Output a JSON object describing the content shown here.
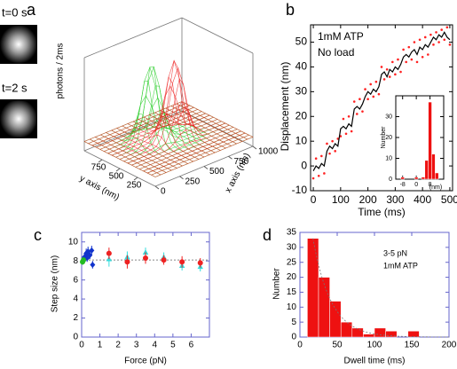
{
  "chart_data": [
    {
      "type": "surface",
      "label": "a",
      "image_labels": [
        "t=0 s",
        "t=2 s"
      ],
      "zlabel": "photons / 2ms",
      "xlabel": "x axis (nm)",
      "ylabel": "y axis (nm)",
      "xlim": [
        0,
        1000
      ],
      "ylim": [
        0,
        1000
      ],
      "xticks": [
        0,
        250,
        500,
        750,
        1000
      ],
      "yticks": [
        250,
        500,
        750
      ],
      "series": [
        {
          "color": "#22cc22"
        },
        {
          "color": "#ee2222"
        }
      ]
    },
    {
      "type": "line",
      "label": "b",
      "xlabel": "Time (ms)",
      "ylabel": "Displacement (nm)",
      "annotations": [
        "1mM ATP",
        "No load"
      ],
      "xlim": [
        -10,
        510
      ],
      "ylim": [
        -10,
        57
      ],
      "xticks": [
        0,
        100,
        200,
        300,
        400,
        500
      ],
      "yticks": [
        -10,
        0,
        10,
        20,
        30,
        40,
        50
      ],
      "x": [
        0,
        10,
        20,
        30,
        40,
        50,
        60,
        70,
        80,
        90,
        100,
        110,
        120,
        130,
        140,
        150,
        160,
        170,
        180,
        190,
        200,
        210,
        220,
        230,
        240,
        250,
        260,
        270,
        280,
        290,
        300,
        310,
        320,
        330,
        340,
        350,
        360,
        370,
        380,
        390,
        400,
        410,
        420,
        430,
        440,
        450,
        460,
        470,
        480,
        490,
        500
      ],
      "series": [
        {
          "color": "#ff2222",
          "style": "dots",
          "values": [
            -5,
            3,
            -4,
            4,
            -3,
            9,
            5,
            10,
            6,
            11,
            12,
            19,
            13,
            20,
            14,
            26,
            21,
            27,
            22,
            31,
            27,
            33,
            28,
            34,
            29,
            40,
            35,
            39,
            36,
            42,
            37,
            43,
            38,
            47,
            42,
            48,
            43,
            50,
            42,
            51,
            44,
            52,
            45,
            53,
            49,
            54,
            50,
            55,
            51,
            56,
            49
          ]
        },
        {
          "color": "#000000",
          "style": "line",
          "values": [
            -2,
            0,
            -1,
            1,
            0,
            6,
            8,
            7,
            9,
            8,
            15,
            16,
            15,
            17,
            16,
            23,
            24,
            23,
            25,
            28,
            30,
            29,
            31,
            30,
            32,
            37,
            38,
            36,
            39,
            38,
            40,
            39,
            41,
            44,
            45,
            44,
            46,
            47,
            45,
            48,
            47,
            49,
            48,
            50,
            52,
            51,
            53,
            52,
            54,
            52,
            51
          ]
        }
      ]
    },
    {
      "type": "histogram",
      "inset": true,
      "ylabel": "Number",
      "xunit": "(nm)",
      "color": "#ee1111",
      "bins": [
        -9,
        -7,
        -5,
        -3,
        -1,
        1,
        3,
        5,
        7,
        9,
        11,
        13
      ],
      "values": [
        1,
        0,
        0,
        0,
        1,
        0,
        1,
        9,
        37,
        12,
        3
      ],
      "xlim": [
        -12,
        16
      ],
      "ylim": [
        0,
        40
      ],
      "xticks": [
        -8,
        0,
        8
      ],
      "yticks": [
        0,
        10,
        20,
        30
      ]
    },
    {
      "type": "scatter",
      "label": "c",
      "xlabel": "Force (pN)",
      "ylabel": "Step size (nm)",
      "hline": 8.1,
      "xlim": [
        0,
        7
      ],
      "ylim": [
        0,
        11
      ],
      "xticks": [
        0,
        1,
        2,
        3,
        4,
        5,
        6
      ],
      "yticks": [
        0,
        2,
        4,
        6,
        8,
        10
      ],
      "series": [
        {
          "color": "#1133cc",
          "marker": "diamond",
          "x": [
            0.15,
            0.25,
            0.35,
            0.45,
            0.55,
            0.6,
            0.3
          ],
          "values": [
            8.4,
            8.8,
            9.0,
            8.6,
            9.1,
            7.6,
            8.3
          ],
          "errors": [
            0.4,
            0.5,
            0.5,
            0.4,
            0.5,
            0.4,
            0.4
          ]
        },
        {
          "color": "#22bb22",
          "marker": "circle",
          "x": [
            0.05,
            0.1
          ],
          "values": [
            7.9,
            8.1
          ],
          "errors": [
            0.3,
            0.3
          ]
        },
        {
          "color": "#33dddd",
          "marker": "triangle",
          "x": [
            1.5,
            2.5,
            3.5,
            4.5,
            5.5,
            6.5
          ],
          "values": [
            8.2,
            8.4,
            8.9,
            8.4,
            7.5,
            7.4
          ],
          "errors": [
            0.8,
            0.6,
            0.5,
            0.5,
            0.5,
            0.5
          ]
        },
        {
          "color": "#ee2222",
          "marker": "circle",
          "x": [
            1.5,
            2.5,
            3.5,
            4.5,
            5.5,
            6.5
          ],
          "values": [
            8.8,
            7.9,
            8.3,
            8.1,
            7.9,
            7.8
          ],
          "errors": [
            0.6,
            0.7,
            0.6,
            0.5,
            0.6,
            0.5
          ]
        }
      ]
    },
    {
      "type": "histogram",
      "label": "d",
      "xlabel": "Dwell time (ms)",
      "ylabel": "Number",
      "annotations": [
        "3-5 pN",
        "1mM ATP"
      ],
      "color": "#ee1111",
      "bins": [
        10,
        25,
        40,
        55,
        70,
        85,
        100,
        115,
        130,
        145,
        160
      ],
      "values": [
        33,
        20,
        12,
        5,
        3,
        1,
        3,
        2,
        0,
        2
      ],
      "xlim": [
        0,
        200
      ],
      "ylim": [
        0,
        35
      ],
      "xticks": [
        0,
        50,
        100,
        150,
        200
      ],
      "yticks": [
        0,
        5,
        10,
        15,
        20,
        25,
        30,
        35
      ]
    }
  ]
}
